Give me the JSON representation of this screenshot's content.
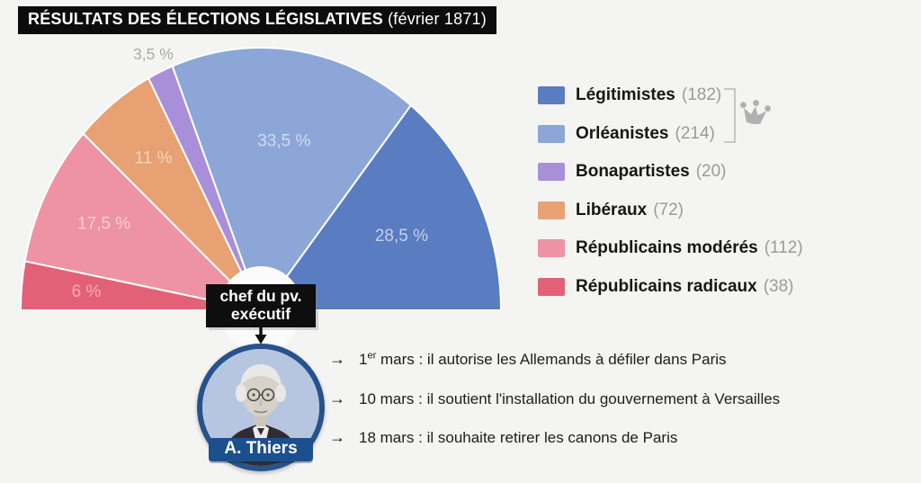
{
  "title": {
    "main": "RÉSULTATS DES ÉLECTIONS LÉGISLATIVES",
    "sub": " (février 1871)"
  },
  "chart_data": {
    "type": "pie",
    "layout": "hemicycle",
    "title": "RÉSULTATS DES ÉLECTIONS LÉGISLATIVES (février 1871)",
    "unit": "%",
    "segments": [
      {
        "name": "Républicains radicaux",
        "pct": 6,
        "pct_label": "6 %",
        "seats": 38,
        "color": "#e36176",
        "label_color": "#f5adbb",
        "label_outside": false
      },
      {
        "name": "Républicains modérés",
        "pct": 17.5,
        "pct_label": "17,5 %",
        "seats": 112,
        "color": "#ee93a3",
        "label_color": "#facdd6",
        "label_outside": false
      },
      {
        "name": "Libéraux",
        "pct": 11,
        "pct_label": "11 %",
        "seats": 72,
        "color": "#e7a173",
        "label_color": "#f5d6ba",
        "label_outside": false
      },
      {
        "name": "Bonapartistes",
        "pct": 3.5,
        "pct_label": "3,5 %",
        "seats": 20,
        "color": "#a98fd9",
        "label_color": "#aaa9ab",
        "label_outside": true
      },
      {
        "name": "Orléanistes",
        "pct": 33.5,
        "pct_label": "33,5 %",
        "seats": 214,
        "color": "#8ca6d7",
        "label_color": "#d0dbf0",
        "label_outside": false
      },
      {
        "name": "Légitimistes",
        "pct": 28.5,
        "pct_label": "28,5 %",
        "seats": 182,
        "color": "#5a7cc0",
        "label_color": "#c4d1ea",
        "label_outside": false
      }
    ]
  },
  "legend": {
    "items": [
      {
        "label": "Légitimistes",
        "count": "(182)",
        "color": "#5a7cc0"
      },
      {
        "label": "Orléanistes",
        "count": "(214)",
        "color": "#8ca6d7"
      },
      {
        "label": "Bonapartistes",
        "count": "(20)",
        "color": "#a98fd9"
      },
      {
        "label": "Libéraux",
        "count": "(72)",
        "color": "#e7a173"
      },
      {
        "label": "Républicains modérés",
        "count": "(112)",
        "color": "#ee93a3"
      },
      {
        "label": "Républicains radicaux",
        "count": "(38)",
        "color": "#e36176"
      }
    ]
  },
  "executive": {
    "label_line1": "chef du pv.",
    "label_line2": "exécutif",
    "name": "A. Thiers"
  },
  "events": [
    {
      "date": "1",
      "date_sup": "er",
      "text": " mars : il autorise les Allemands à défiler dans Paris"
    },
    {
      "date": "10",
      "date_sup": "",
      "text": " mars : il soutient l'installation du gouvernement à Versailles"
    },
    {
      "date": "18",
      "date_sup": "",
      "text": " mars : il souhaite retirer les canons de Paris"
    }
  ],
  "icons": {
    "event_arrow": "→",
    "crown_color": "#b0b0b0",
    "bracket_color": "#c6c6c6"
  },
  "colors": {
    "background": "#f4f4f3",
    "title_bg": "#0c0c0c",
    "portrait_ring": "#27528b",
    "name_tag_bg": "#1c4f8d",
    "segment_divider": "#ffffff",
    "hole_fill": "#fbfbfb"
  }
}
